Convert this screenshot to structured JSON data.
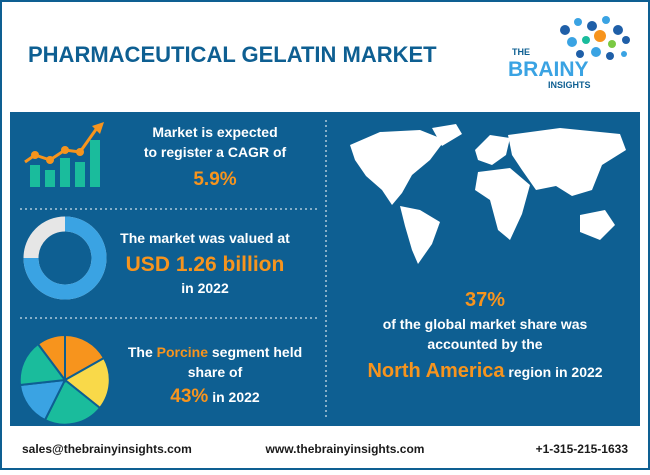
{
  "header": {
    "title": "PHARMACEUTICAL GELATIN MARKET",
    "logo": {
      "line1": "THE",
      "line2": "BRAINY",
      "line3": "INSIGHTS"
    }
  },
  "stats": [
    {
      "line1": "Market is expected",
      "line2": "to register a CAGR of",
      "highlight": "5.9%"
    },
    {
      "line1": "The market was valued at",
      "highlight": "USD 1.26 billion",
      "line2": "in 2022"
    },
    {
      "line1_before": "The",
      "line1_highlight": "Porcine",
      "line1_after": "segment held",
      "line2": "share of",
      "highlight": "43%",
      "line3_after": "in 2022"
    }
  ],
  "region": {
    "highlight": "37%",
    "line1": "of the global market share was",
    "line2": "accounted by the",
    "region_name": "North America",
    "line3_after": "region in 2022"
  },
  "footer": {
    "email": "sales@thebrainyinsights.com",
    "website": "www.thebrainyinsights.com",
    "phone": "+1-315-215-1633"
  }
}
